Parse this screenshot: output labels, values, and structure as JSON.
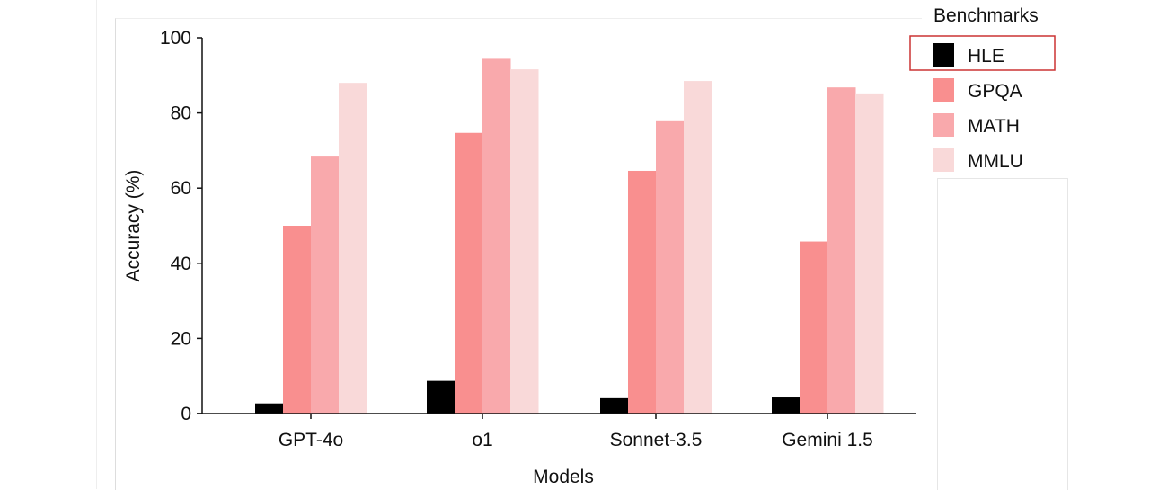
{
  "chart_data": {
    "type": "bar",
    "xlabel": "Models",
    "ylabel": "Accuracy (%)",
    "ylim": [
      0,
      100
    ],
    "yticks": [
      "0",
      "20",
      "40",
      "60",
      "80",
      "100"
    ],
    "categories": [
      "GPT-4o",
      "o1",
      "Sonnet-3.5",
      "Gemini 1.5"
    ],
    "legend_title": "Benchmarks",
    "legend_placement": "right",
    "legend_highlight": "HLE",
    "grid": false,
    "series": [
      {
        "name": "HLE",
        "color": "#000000",
        "values": [
          2.7,
          8.7,
          4.1,
          4.3
        ]
      },
      {
        "name": "GPQA",
        "color": "#f98f8f",
        "values": [
          50.0,
          74.7,
          64.6,
          45.8
        ]
      },
      {
        "name": "MATH",
        "color": "#f9a9ac",
        "values": [
          68.4,
          94.4,
          77.8,
          86.8
        ]
      },
      {
        "name": "MMLU",
        "color": "#f9d9d9",
        "values": [
          88.0,
          91.6,
          88.5,
          85.2
        ]
      }
    ]
  },
  "colors": {
    "highlight_box": "#cc3333"
  }
}
